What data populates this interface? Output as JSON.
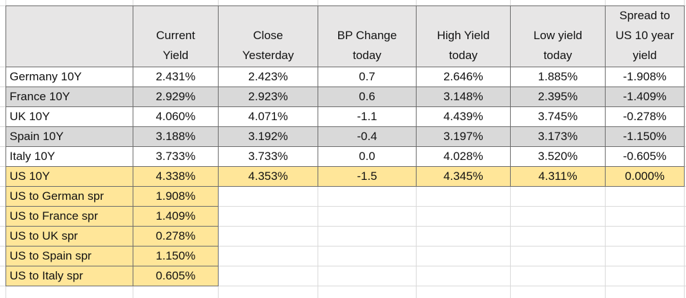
{
  "header": {
    "columns": [
      [
        "Current",
        "Yield"
      ],
      [
        "Close",
        "Yesterday"
      ],
      [
        "BP Change",
        "today"
      ],
      [
        "High Yield",
        "today"
      ],
      [
        "Low yield",
        "today"
      ],
      [
        "Spread to",
        "US 10 year",
        "yield"
      ]
    ]
  },
  "table": {
    "rows": [
      [
        "Germany 10Y",
        "2.431%",
        "2.423%",
        "0.7",
        "2.646%",
        "1.885%",
        "-1.908%"
      ],
      [
        "France 10Y",
        "2.929%",
        "2.923%",
        "0.6",
        "3.148%",
        "2.395%",
        "-1.409%"
      ],
      [
        "UK 10Y",
        "4.060%",
        "4.071%",
        "-1.1",
        "4.439%",
        "3.745%",
        "-0.278%"
      ],
      [
        "Spain 10Y",
        "3.188%",
        "3.192%",
        "-0.4",
        "3.197%",
        "3.173%",
        "-1.150%"
      ],
      [
        "Italy 10Y",
        "3.733%",
        "3.733%",
        "0.0",
        "4.028%",
        "3.520%",
        "-0.605%"
      ],
      [
        "US 10Y",
        "4.338%",
        "4.353%",
        "-1.5",
        "4.345%",
        "4.311%",
        "0.000%"
      ]
    ]
  },
  "spreads": {
    "rows": [
      [
        "US to German spr",
        "1.908%"
      ],
      [
        "US to France spr",
        "1.409%"
      ],
      [
        "US to UK spr",
        "0.278%"
      ],
      [
        "US to Spain spr",
        "1.150%"
      ],
      [
        "US to Italy spr",
        "0.605%"
      ]
    ]
  }
}
